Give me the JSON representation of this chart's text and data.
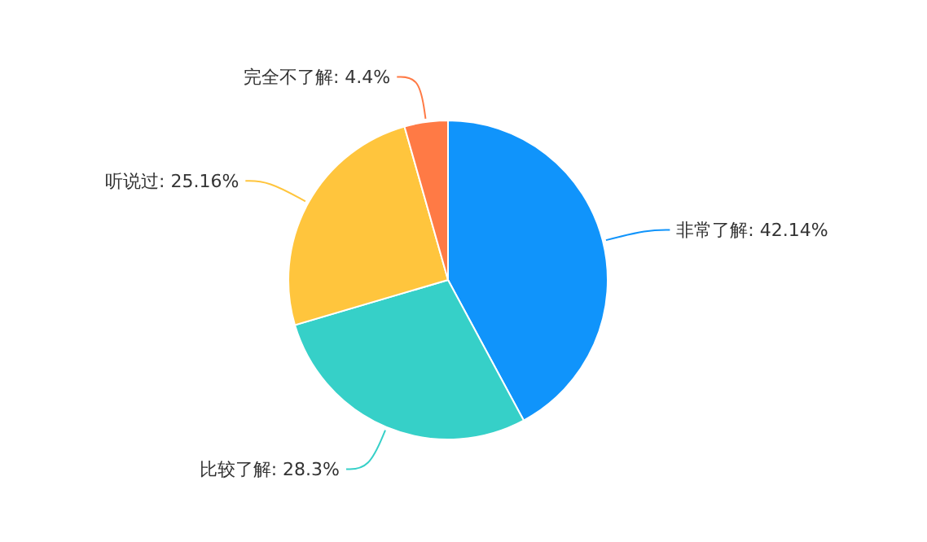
{
  "chart_data": {
    "type": "pie",
    "categories": [
      "非常了解",
      "比较了解",
      "听说过",
      "完全不了解"
    ],
    "values": [
      42.14,
      28.3,
      25.16,
      4.4
    ],
    "value_labels": [
      "42.14%",
      "28.3%",
      "25.16%",
      "4.4%"
    ],
    "colors": [
      "#1094fb",
      "#36d0c8",
      "#ffc53d",
      "#ff7a45"
    ]
  }
}
